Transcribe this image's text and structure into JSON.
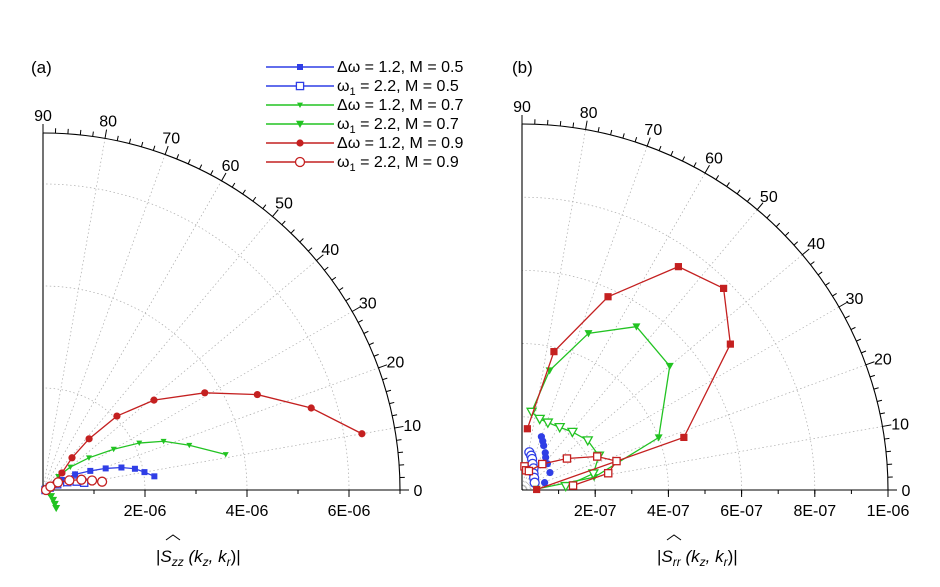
{
  "panels": [
    {
      "label": "(a)",
      "xlabel_prefix": "|",
      "xlabel_S": "S",
      "xlabel_sub": "zz",
      "xlabel_args": " (k",
      "xlabel_sub1": "z",
      "xlabel_mid": ", k",
      "xlabel_sub2": "r",
      "xlabel_end": ")|"
    },
    {
      "label": "(b)",
      "xlabel_prefix": "|",
      "xlabel_S": "S",
      "xlabel_sub": "rr",
      "xlabel_args": " (k",
      "xlabel_sub1": "z",
      "xlabel_mid": ", k",
      "xlabel_sub2": "r",
      "xlabel_end": ")|"
    }
  ],
  "legend": [
    {
      "pre": "Δω = 1.2, M = 0.5",
      "sym": "",
      "sub": "",
      "post": ""
    },
    {
      "pre": "",
      "sym": "ω",
      "sub": "1",
      "post": " = 2.2, M = 0.5"
    },
    {
      "pre": "Δω = 1.2, M = 0.7",
      "sym": "",
      "sub": "",
      "post": ""
    },
    {
      "pre": "",
      "sym": "ω",
      "sub": "1",
      "post": " = 2.2, M = 0.7"
    },
    {
      "pre": "Δω = 1.2, M = 0.9",
      "sym": "",
      "sub": "",
      "post": ""
    },
    {
      "pre": "",
      "sym": "ω",
      "sub": "1",
      "post": " = 2.2, M = 0.9"
    }
  ],
  "colors": {
    "blue": "#2f3ee6",
    "green": "#22c322",
    "red": "#c42020",
    "grid": "#aaaaaa"
  },
  "chart_data": [
    {
      "type": "scatter",
      "coordinate_system": "polar",
      "panel": "(a)",
      "theta_unit": "degrees",
      "theta_ticks": [
        "0",
        "10",
        "20",
        "30",
        "40",
        "50",
        "60",
        "70",
        "80",
        "90"
      ],
      "r_ticks": [
        "2E-06",
        "4E-06",
        "6E-06"
      ],
      "r_tick_values": [
        2e-06,
        4e-06,
        6e-06
      ],
      "rlim": [
        0,
        7e-06
      ],
      "series": [
        {
          "name": "Δω = 1.2, M = 0.5",
          "color": "blue",
          "marker": "square-small",
          "line": true,
          "points": [
            [
              0,
              5e-08
            ],
            [
              20,
              1.6e-07
            ],
            [
              28,
              4.2e-07
            ],
            [
              26,
              7e-07
            ],
            [
              22,
              1e-06
            ],
            [
              19,
              1.3e-06
            ],
            [
              16,
              1.6e-06
            ],
            [
              13,
              1.85e-06
            ],
            [
              10,
              2.02e-06
            ],
            [
              7,
              2.2e-06
            ]
          ]
        },
        {
          "name": "ω1 = 2.2, M = 0.5",
          "color": "blue",
          "marker": "square-open",
          "line": true,
          "points": [
            [
              0,
              5e-08
            ],
            [
              20,
              1.4e-07
            ],
            [
              22,
              3e-07
            ],
            [
              18,
              5e-07
            ],
            [
              14,
              6.8e-07
            ],
            [
              10,
              8.2e-07
            ]
          ]
        },
        {
          "name": "Δω = 1.2, M = 0.7",
          "color": "green",
          "marker": "triangle-small",
          "line": true,
          "points": [
            [
              0,
              5e-08
            ],
            [
              30,
              2e-07
            ],
            [
              42,
              4e-07
            ],
            [
              40,
              7e-07
            ],
            [
              35,
              1.1e-06
            ],
            [
              30,
              1.6e-06
            ],
            [
              26,
              2.1e-06
            ],
            [
              22,
              2.55e-06
            ],
            [
              17,
              3e-06
            ],
            [
              11,
              3.65e-06
            ]
          ]
        },
        {
          "name": "ω1 = 2.2, M = 0.7",
          "color": "green",
          "marker": "triangle-down",
          "line": true,
          "points": [
            [
              0,
              5e-08
            ],
            [
              -25,
              1.2e-07
            ],
            [
              -38,
              2e-07
            ],
            [
              -45,
              2.8e-07
            ],
            [
              -50,
              3.6e-07
            ],
            [
              -54,
              4.4e-07
            ]
          ]
        },
        {
          "name": "Δω = 1.2, M = 0.9",
          "color": "red",
          "marker": "circle-filled",
          "line": true,
          "points": [
            [
              0,
              8e-08
            ],
            [
              26,
              2.5e-07
            ],
            [
              42,
              5e-07
            ],
            [
              48,
              8.5e-07
            ],
            [
              48,
              1.35e-06
            ],
            [
              45,
              2.05e-06
            ],
            [
              39,
              2.8e-06
            ],
            [
              31,
              3.7e-06
            ],
            [
              24,
              4.6e-06
            ],
            [
              17,
              5.5e-06
            ],
            [
              10,
              6.35e-06
            ]
          ]
        },
        {
          "name": "ω1 = 2.2, M = 0.9",
          "color": "red",
          "marker": "circle-open",
          "line": true,
          "points": [
            [
              0,
              6e-08
            ],
            [
              25,
              1.6e-07
            ],
            [
              27,
              3.3e-07
            ],
            [
              20,
              5.5e-07
            ],
            [
              15,
              7.8e-07
            ],
            [
              11,
              9.8e-07
            ],
            [
              8,
              1.17e-06
            ]
          ]
        }
      ]
    },
    {
      "type": "scatter",
      "coordinate_system": "polar",
      "panel": "(b)",
      "theta_unit": "degrees",
      "theta_ticks": [
        "0",
        "10",
        "20",
        "30",
        "40",
        "50",
        "60",
        "70",
        "80",
        "90"
      ],
      "r_ticks": [
        "2E-07",
        "4E-07",
        "6E-07",
        "8E-07",
        "1E-06"
      ],
      "r_tick_values": [
        2e-07,
        4e-07,
        6e-07,
        8e-07,
        1e-06
      ],
      "rlim": [
        0,
        1e-06
      ],
      "series": [
        {
          "name": "Δω = 1.2, M = 0.5",
          "color": "blue",
          "marker": "circle-filled",
          "line": false,
          "points": [
            [
              70,
              1.55e-07
            ],
            [
              67,
              1.45e-07
            ],
            [
              64,
              1.35e-07
            ],
            [
              58,
              1.2e-07
            ],
            [
              54,
              1.1e-07
            ],
            [
              46,
              1e-07
            ],
            [
              32,
              9e-08
            ],
            [
              18,
              6.5e-08
            ]
          ]
        },
        {
          "name": "ω1 = 2.2, M = 0.5",
          "color": "blue",
          "marker": "circle-open",
          "line": false,
          "points": [
            [
              79,
              1.05e-07
            ],
            [
              75,
              9.7e-08
            ],
            [
              72,
              8.9e-08
            ],
            [
              68,
              7.7e-08
            ],
            [
              62,
              6.7e-08
            ],
            [
              55,
              5.5e-08
            ],
            [
              45,
              4.7e-08
            ],
            [
              30,
              4e-08
            ]
          ]
        },
        {
          "name": "Δω = 1.2, M = 0.7",
          "color": "green",
          "marker": "triangle-down",
          "line": true,
          "points": [
            [
              4,
              4e-08
            ],
            [
              10,
              2e-07
            ],
            [
              21,
              4e-07
            ],
            [
              40,
              5.27e-07
            ],
            [
              55,
              5.45e-07
            ],
            [
              67,
              4.65e-07
            ],
            [
              77,
              3.35e-07
            ],
            [
              83,
              2.15e-07
            ]
          ]
        },
        {
          "name": "ω1 = 2.2, M = 0.7",
          "color": "green",
          "marker": "triangle-open-down",
          "line": true,
          "points": [
            [
              83,
              2.15e-07
            ],
            [
              76,
              2e-07
            ],
            [
              69,
              1.97e-07
            ],
            [
              59,
              2e-07
            ],
            [
              49,
              2.1e-07
            ],
            [
              37,
              2.25e-07
            ],
            [
              24,
              2.3e-07
            ],
            [
              13,
              2e-07
            ],
            [
              5,
              1.2e-07
            ]
          ]
        },
        {
          "name": "Δω = 1.2, M = 0.9",
          "color": "red",
          "marker": "square-filled",
          "line": true,
          "points": [
            [
              2,
              4e-08
            ],
            [
              18,
              4.65e-07
            ],
            [
              35,
              6.95e-07
            ],
            [
              45,
              7.79e-07
            ],
            [
              55,
              7.45e-07
            ],
            [
              66,
              5.78e-07
            ],
            [
              77,
              3.88e-07
            ],
            [
              85,
              1.68e-07
            ]
          ]
        },
        {
          "name": "ω1 = 2.2, M = 0.9",
          "color": "red",
          "marker": "square-open",
          "line": true,
          "points": [
            [
              84,
              6.5e-08
            ],
            [
              78,
              5.5e-08
            ],
            [
              70,
              5.5e-08
            ],
            [
              52,
              9e-08
            ],
            [
              35,
              1.5e-07
            ],
            [
              24,
              2.25e-07
            ],
            [
              17,
              2.7e-07
            ],
            [
              11,
              2.4e-07
            ],
            [
              5,
              1.4e-07
            ]
          ]
        }
      ]
    }
  ]
}
